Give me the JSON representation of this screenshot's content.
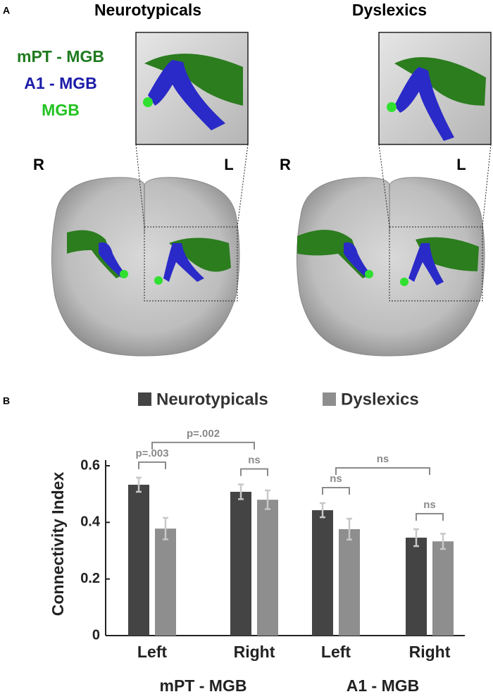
{
  "panel_a": {
    "label": "A",
    "titles": [
      "Neurotypicals",
      "Dyslexics"
    ],
    "legend": [
      {
        "text": "mPT - MGB",
        "color": "#1f7a1f"
      },
      {
        "text": "A1 - MGB",
        "color": "#1c1caa"
      },
      {
        "text": "MGB",
        "color": "#22c322"
      }
    ],
    "sides": [
      "R",
      "L"
    ]
  },
  "chart_data": {
    "type": "bar",
    "label": "B",
    "ylabel": "Connectivity Index",
    "categories": [
      "Left",
      "Right",
      "Left",
      "Right"
    ],
    "groups": [
      {
        "label": "mPT - MGB",
        "categories": [
          0,
          1
        ]
      },
      {
        "label": "A1 - MGB",
        "categories": [
          2,
          3
        ]
      }
    ],
    "series": [
      {
        "name": "Neurotypicals",
        "color": "#444444",
        "values": [
          0.533,
          0.508,
          0.443,
          0.346
        ],
        "errors": [
          0.025,
          0.026,
          0.025,
          0.03
        ]
      },
      {
        "name": "Dyslexics",
        "color": "#8e8e8e",
        "values": [
          0.378,
          0.48,
          0.376,
          0.333
        ],
        "errors": [
          0.038,
          0.033,
          0.037,
          0.027
        ]
      }
    ],
    "ylim": [
      0,
      0.62
    ],
    "yticks": [
      0,
      0.2,
      0.4,
      0.6
    ],
    "error_color": "#c8c8c8",
    "annotations": [
      {
        "text": "p=.003",
        "from": [
          0,
          0
        ],
        "to": [
          0,
          1
        ]
      },
      {
        "text": "p=.002",
        "from": [
          0
        ],
        "to": [
          1
        ]
      },
      {
        "text": "ns",
        "from": [
          1,
          0
        ],
        "to": [
          1,
          1
        ]
      },
      {
        "text": "ns",
        "from": [
          2,
          0
        ],
        "to": [
          2,
          1
        ]
      },
      {
        "text": "ns",
        "from": [
          3,
          0
        ],
        "to": [
          3,
          1
        ]
      },
      {
        "text": "ns",
        "from": [
          2
        ],
        "to": [
          3
        ]
      }
    ],
    "annotation_color": "#8a8a8a"
  }
}
